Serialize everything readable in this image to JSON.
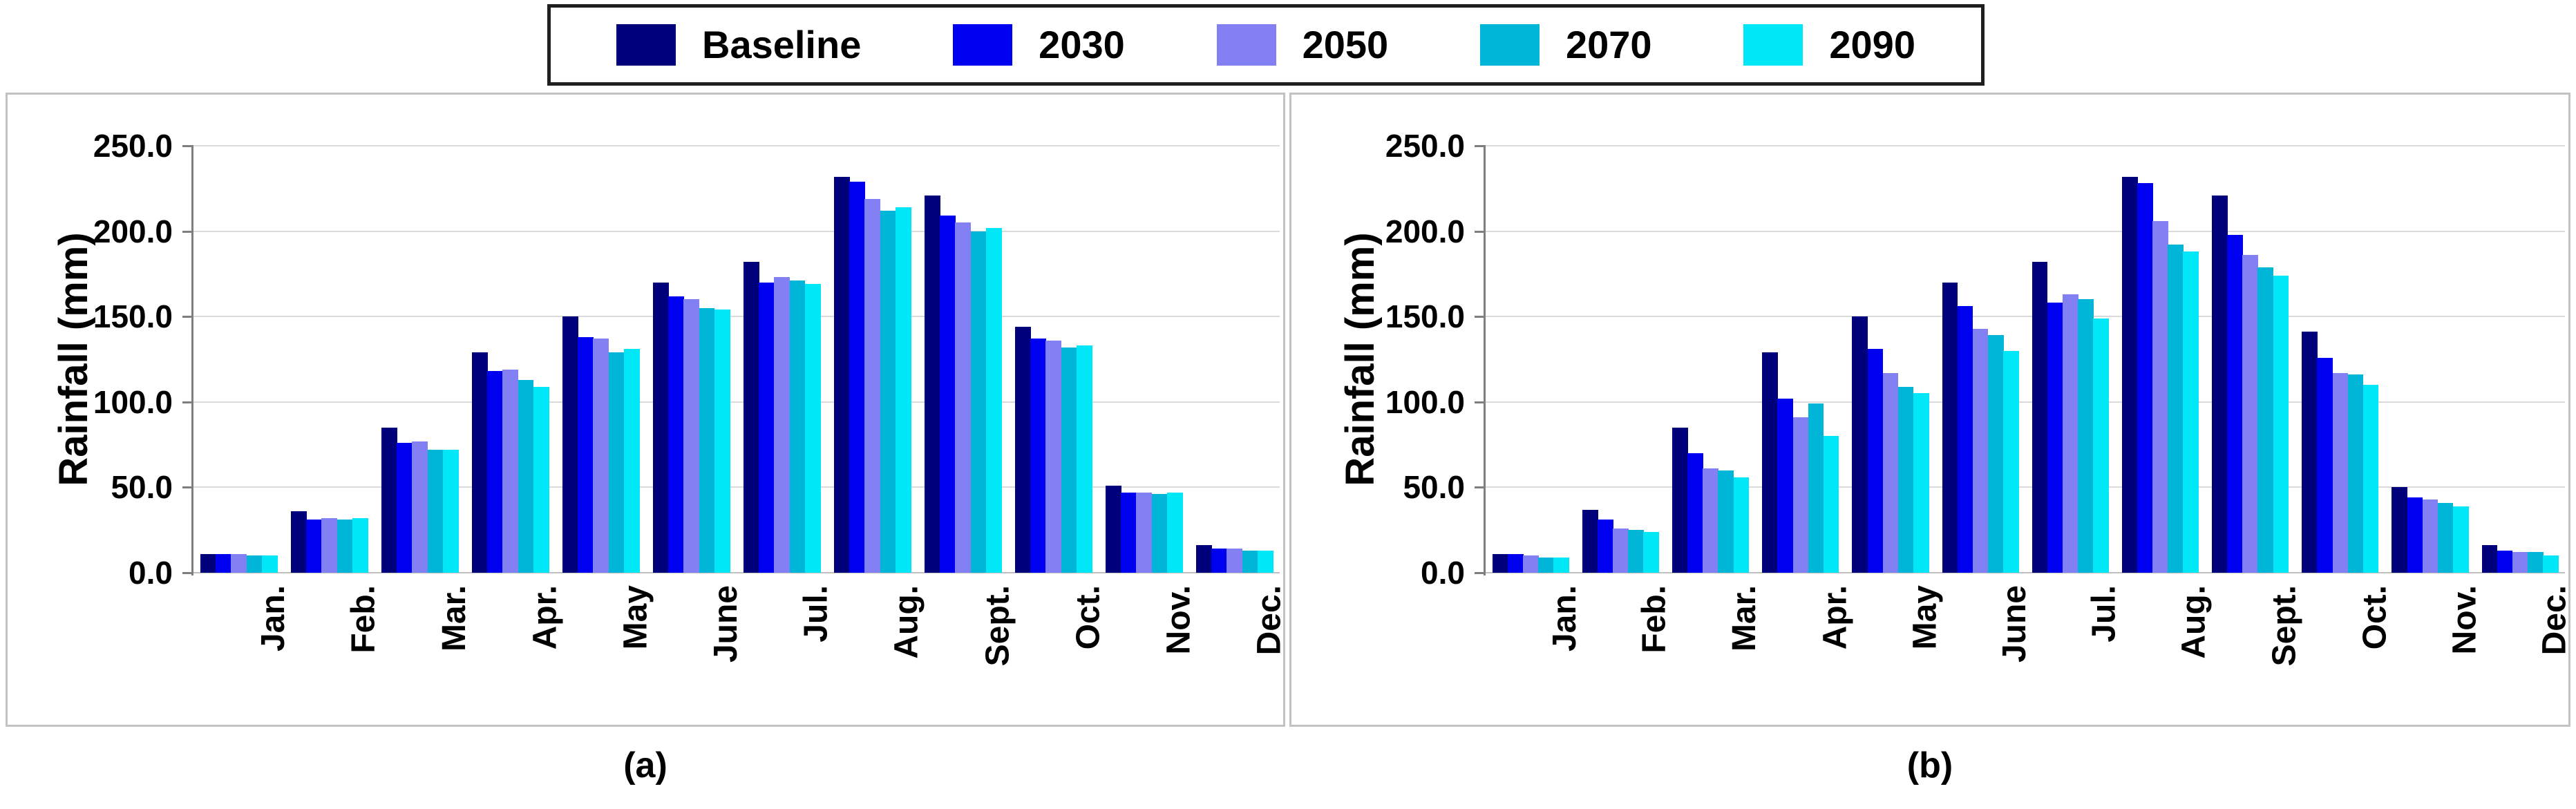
{
  "figure": {
    "legend": {
      "entries": [
        {
          "label": "Baseline",
          "color": "#00007B"
        },
        {
          "label": "2030",
          "color": "#0000F0"
        },
        {
          "label": "2050",
          "color": "#8280F2"
        },
        {
          "label": "2070",
          "color": "#00B6D8"
        },
        {
          "label": "2090",
          "color": "#00E8F8"
        }
      ]
    },
    "panels": [
      {
        "caption": "(a)"
      },
      {
        "caption": "(b)"
      }
    ],
    "colors": {
      "gridline": "#DADADA",
      "axis": "#7F7F7F",
      "panel_border": "#C2C2C2",
      "legend_border": "#1F1F1F",
      "text": "#000000"
    }
  },
  "chart_data": [
    {
      "type": "bar",
      "title": "(a)",
      "xlabel": "",
      "ylabel": "Rainfall (mm)",
      "ylim": [
        0,
        250
      ],
      "ytick_step": 50,
      "ytick_labels": [
        "0.0",
        "50.0",
        "100.0",
        "150.0",
        "200.0",
        "250.0"
      ],
      "grid": true,
      "legend_position": "top-center-shared",
      "categories": [
        "Jan.",
        "Feb.",
        "Mar.",
        "Apr.",
        "May",
        "June",
        "Jul.",
        "Aug.",
        "Sept.",
        "Oct.",
        "Nov.",
        "Dec."
      ],
      "series": [
        {
          "name": "Baseline",
          "color": "#00007B",
          "values": [
            11,
            36,
            85,
            129,
            150,
            170,
            182,
            232,
            221,
            144,
            51,
            16
          ]
        },
        {
          "name": "2030",
          "color": "#0000F0",
          "values": [
            11,
            31,
            76,
            118,
            138,
            162,
            170,
            229,
            209,
            137,
            47,
            14
          ]
        },
        {
          "name": "2050",
          "color": "#8280F2",
          "values": [
            11,
            32,
            77,
            119,
            137,
            160,
            173,
            219,
            205,
            136,
            47,
            14
          ]
        },
        {
          "name": "2070",
          "color": "#00B6D8",
          "values": [
            10,
            31,
            72,
            113,
            129,
            155,
            171,
            212,
            200,
            132,
            46,
            13
          ]
        },
        {
          "name": "2090",
          "color": "#00E8F8",
          "values": [
            10,
            32,
            72,
            109,
            131,
            154,
            169,
            214,
            202,
            133,
            47,
            13
          ]
        }
      ]
    },
    {
      "type": "bar",
      "title": "(b)",
      "xlabel": "",
      "ylabel": "Rainfall (mm)",
      "ylim": [
        0,
        250
      ],
      "ytick_step": 50,
      "ytick_labels": [
        "0.0",
        "50.0",
        "100.0",
        "150.0",
        "200.0",
        "250.0"
      ],
      "grid": true,
      "legend_position": "top-center-shared",
      "categories": [
        "Jan.",
        "Feb.",
        "Mar.",
        "Apr.",
        "May",
        "June",
        "Jul.",
        "Aug.",
        "Sept.",
        "Oct.",
        "Nov.",
        "Dec."
      ],
      "series": [
        {
          "name": "Baseline",
          "color": "#00007B",
          "values": [
            11,
            37,
            85,
            129,
            150,
            170,
            182,
            232,
            221,
            141,
            50,
            16
          ]
        },
        {
          "name": "2030",
          "color": "#0000F0",
          "values": [
            11,
            31,
            70,
            102,
            131,
            156,
            158,
            228,
            198,
            126,
            44,
            13
          ]
        },
        {
          "name": "2050",
          "color": "#8280F2",
          "values": [
            10,
            26,
            61,
            91,
            117,
            143,
            163,
            206,
            186,
            117,
            43,
            12
          ]
        },
        {
          "name": "2070",
          "color": "#00B6D8",
          "values": [
            9,
            25,
            60,
            99,
            109,
            139,
            160,
            192,
            179,
            116,
            41,
            12
          ]
        },
        {
          "name": "2090",
          "color": "#00E8F8",
          "values": [
            9,
            24,
            56,
            80,
            105,
            130,
            149,
            188,
            174,
            110,
            39,
            10
          ]
        }
      ]
    }
  ]
}
